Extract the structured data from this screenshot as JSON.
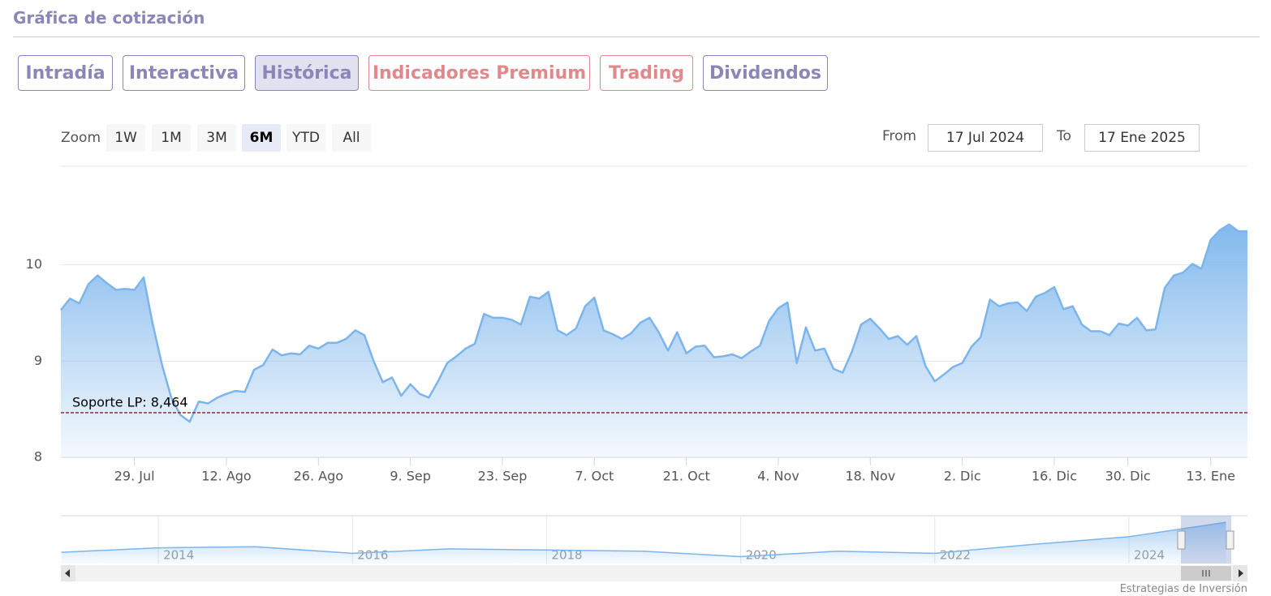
{
  "header": {
    "title": "Gráfica de cotización"
  },
  "tabs": [
    "Intradía",
    "Interactiva",
    "Histórica",
    "Indicadores Premium",
    "Trading",
    "Dividendos"
  ],
  "zoom": {
    "label": "Zoom",
    "buttons": [
      "1W",
      "1M",
      "3M",
      "6M",
      "YTD",
      "All"
    ]
  },
  "range": {
    "from_label": "From",
    "from": "17 Jul 2024",
    "to_label": "To",
    "to": "17 Ene 2025"
  },
  "chart_data": {
    "type": "area",
    "color": "#7cb5ec",
    "categories": [
      null,
      null,
      null,
      null,
      null,
      null,
      null,
      null,
      "29. Jul",
      null,
      null,
      null,
      null,
      null,
      null,
      null,
      null,
      null,
      "12. Ago",
      null,
      null,
      null,
      null,
      null,
      null,
      null,
      null,
      null,
      "26. Ago",
      null,
      null,
      null,
      null,
      null,
      null,
      null,
      null,
      null,
      "9. Sep",
      null,
      null,
      null,
      null,
      null,
      null,
      null,
      null,
      null,
      "23. Sep",
      null,
      null,
      null,
      null,
      null,
      null,
      null,
      null,
      null,
      "7. Oct",
      null,
      null,
      null,
      null,
      null,
      null,
      null,
      null,
      null,
      "21. Oct",
      null,
      null,
      null,
      null,
      null,
      null,
      null,
      null,
      null,
      "4. Nov",
      null,
      null,
      null,
      null,
      null,
      null,
      null,
      null,
      null,
      "18. Nov",
      null,
      null,
      null,
      null,
      null,
      null,
      null,
      null,
      null,
      "2. Dic",
      null,
      null,
      null,
      null,
      null,
      null,
      null,
      null,
      null,
      "16. Dic",
      null,
      null,
      null,
      null,
      null,
      null,
      null,
      "30. Dic",
      null,
      null,
      null,
      null,
      null,
      null,
      null,
      null,
      "13. Ene",
      null,
      null,
      null,
      null
    ],
    "values": [
      9.53,
      9.65,
      9.6,
      9.8,
      9.89,
      9.81,
      9.74,
      9.75,
      9.74,
      9.87,
      9.38,
      8.96,
      8.62,
      8.44,
      8.37,
      8.58,
      8.56,
      8.62,
      8.66,
      8.69,
      8.68,
      8.91,
      8.96,
      9.12,
      9.06,
      9.08,
      9.07,
      9.16,
      9.13,
      9.19,
      9.19,
      9.23,
      9.32,
      9.27,
      9.0,
      8.78,
      8.83,
      8.64,
      8.76,
      8.66,
      8.62,
      8.79,
      8.98,
      9.05,
      9.13,
      9.18,
      9.49,
      9.45,
      9.45,
      9.43,
      9.38,
      9.67,
      9.65,
      9.72,
      9.32,
      9.27,
      9.34,
      9.57,
      9.66,
      9.32,
      9.28,
      9.23,
      9.29,
      9.4,
      9.45,
      9.3,
      9.11,
      9.3,
      9.08,
      9.15,
      9.16,
      9.04,
      9.05,
      9.07,
      9.03,
      9.1,
      9.16,
      9.42,
      9.55,
      9.61,
      8.98,
      9.35,
      9.11,
      9.13,
      8.92,
      8.88,
      9.1,
      9.38,
      9.44,
      9.34,
      9.23,
      9.26,
      9.17,
      9.26,
      8.95,
      8.79,
      8.86,
      8.94,
      8.98,
      9.15,
      9.25,
      9.64,
      9.57,
      9.6,
      9.61,
      9.52,
      9.67,
      9.71,
      9.77,
      9.54,
      9.57,
      9.38,
      9.31,
      9.31,
      9.27,
      9.39,
      9.37,
      9.45,
      9.32,
      9.33,
      9.76,
      9.89,
      9.92,
      10.01,
      9.96,
      10.26,
      10.36,
      10.42,
      10.35,
      10.35
    ],
    "ylim": [
      8,
      11
    ],
    "yticks": [
      8,
      9,
      10
    ],
    "grid": true,
    "support": {
      "label": "Soporte LP: 8,464",
      "value": 8.464,
      "color": "#8b1a2b"
    }
  },
  "navigator": {
    "x": [
      2013,
      2014,
      2015,
      2016,
      2017,
      2018,
      2019,
      2020,
      2021,
      2022,
      2023,
      2024,
      2025
    ],
    "values": [
      7.6,
      8.0,
      8.1,
      7.5,
      7.9,
      7.8,
      7.7,
      7.2,
      7.7,
      7.5,
      8.3,
      9.0,
      10.3
    ],
    "xlim": [
      2013,
      2025
    ],
    "ylim": [
      6.8,
      10.6
    ],
    "xticks": [
      2014,
      2016,
      2018,
      2020,
      2022,
      2024
    ]
  },
  "credits": "Estrategias de Inversión"
}
